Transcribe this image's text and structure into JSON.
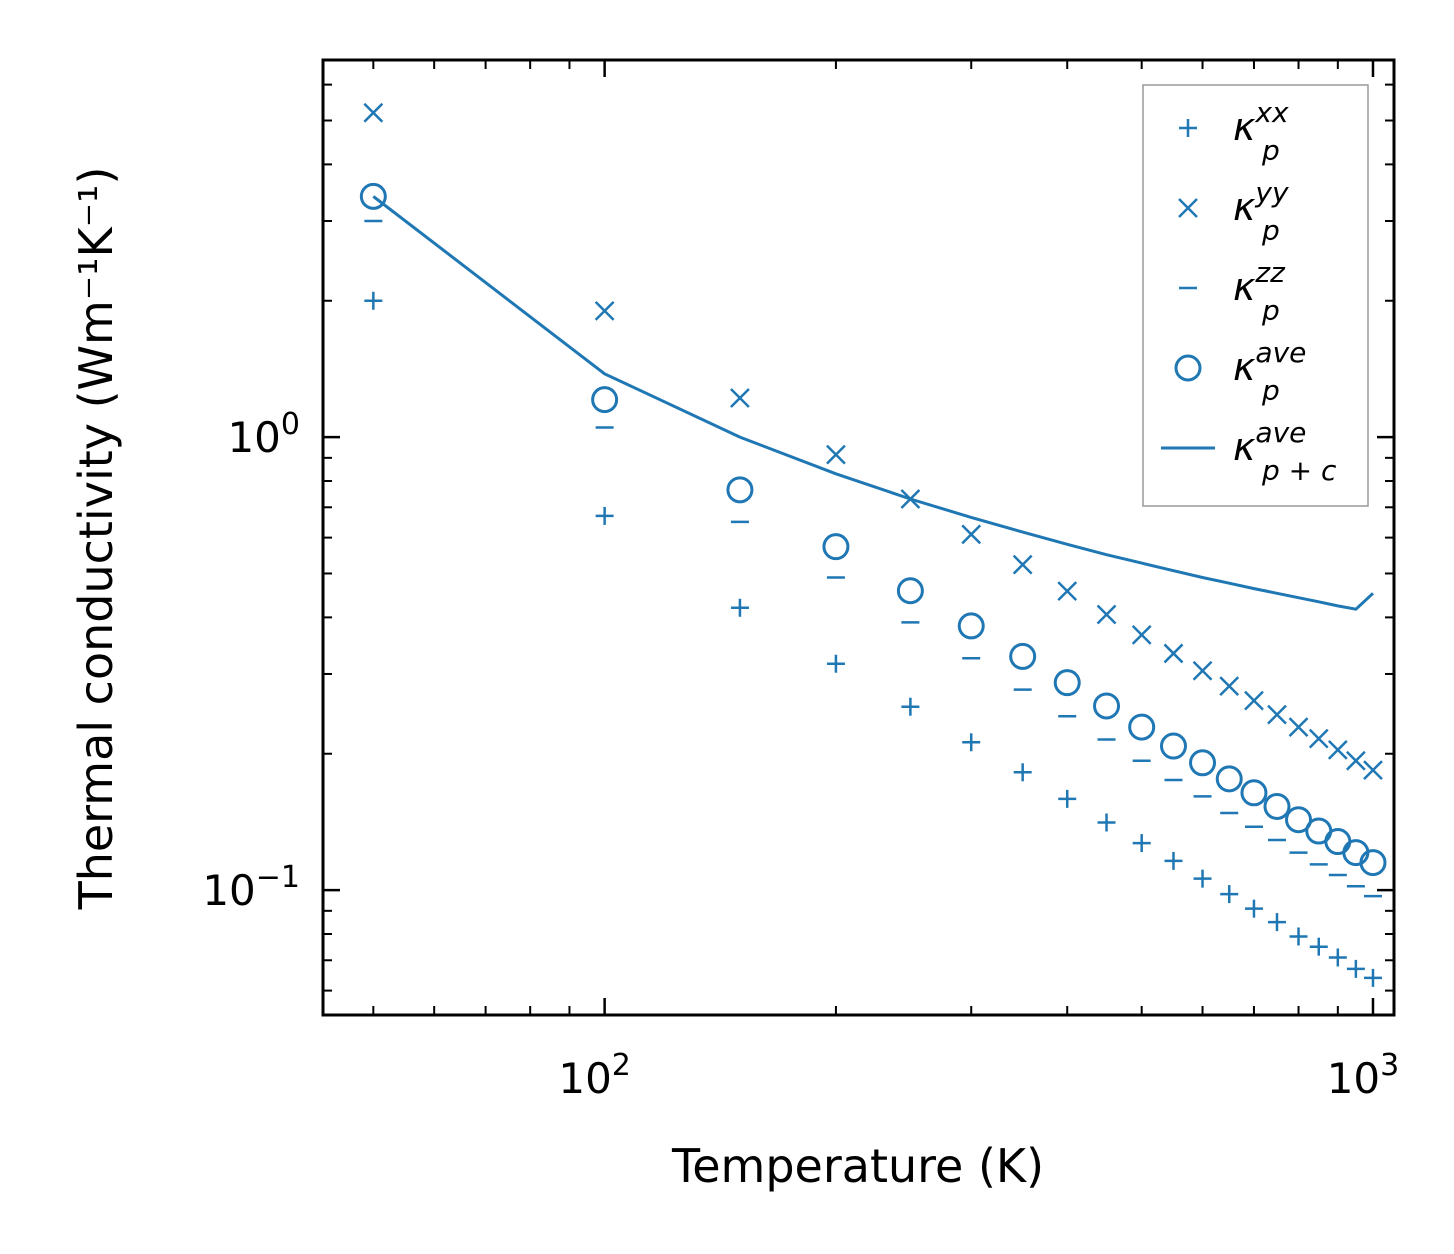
{
  "chart_data": {
    "type": "scatter",
    "title": "",
    "xlabel": "Temperature (K)",
    "ylabel": "Thermal conductivity (Wm⁻¹K⁻¹)",
    "xscale": "log",
    "yscale": "log",
    "xlim": [
      43,
      1065
    ],
    "ylim": [
      0.053,
      6.8
    ],
    "grid": false,
    "legend_position": "top-right",
    "color": "#1f77b4",
    "x_ticks": [
      {
        "value": 100,
        "base": "10",
        "exp": "2"
      },
      {
        "value": 1000,
        "base": "10",
        "exp": "3"
      }
    ],
    "y_ticks": [
      {
        "value": 0.1,
        "base": "10",
        "exp": "−1"
      },
      {
        "value": 1,
        "base": "10",
        "exp": "0"
      }
    ],
    "x": [
      50,
      100,
      150,
      200,
      250,
      300,
      350,
      400,
      450,
      500,
      550,
      600,
      650,
      700,
      750,
      800,
      850,
      900,
      950,
      1000
    ],
    "series": [
      {
        "name": "kappa_p^xx",
        "label_main": "κ",
        "label_sub": "p",
        "label_sup": "xx",
        "marker": "plus",
        "values": [
          2.0,
          0.67,
          0.42,
          0.316,
          0.254,
          0.212,
          0.182,
          0.159,
          0.141,
          0.127,
          0.116,
          0.106,
          0.098,
          0.091,
          0.085,
          0.079,
          0.075,
          0.071,
          0.067,
          0.064
        ]
      },
      {
        "name": "kappa_p^yy",
        "label_main": "κ",
        "label_sub": "p",
        "label_sup": "yy",
        "marker": "x",
        "values": [
          5.2,
          1.9,
          1.22,
          0.915,
          0.73,
          0.61,
          0.523,
          0.457,
          0.406,
          0.366,
          0.333,
          0.305,
          0.282,
          0.262,
          0.244,
          0.229,
          0.216,
          0.204,
          0.193,
          0.184
        ]
      },
      {
        "name": "kappa_p^zz",
        "label_main": "κ",
        "label_sub": "p",
        "label_sup": "zz",
        "marker": "hline",
        "values": [
          3.0,
          1.05,
          0.65,
          0.49,
          0.39,
          0.325,
          0.277,
          0.242,
          0.215,
          0.193,
          0.175,
          0.161,
          0.148,
          0.138,
          0.129,
          0.121,
          0.114,
          0.108,
          0.102,
          0.097
        ]
      },
      {
        "name": "kappa_p^ave",
        "label_main": "κ",
        "label_sub": "p",
        "label_sup": "ave",
        "marker": "circle",
        "values": [
          3.4,
          1.21,
          0.765,
          0.573,
          0.458,
          0.383,
          0.328,
          0.287,
          0.255,
          0.229,
          0.208,
          0.191,
          0.176,
          0.164,
          0.153,
          0.143,
          0.135,
          0.128,
          0.121,
          0.115
        ]
      },
      {
        "name": "kappa_p+c^ave",
        "label_main": "κ",
        "label_sub": "p + c",
        "label_sup": "ave",
        "marker": "line",
        "x": [
          50,
          100,
          150,
          200,
          250,
          300,
          350,
          400,
          450,
          500,
          550,
          600,
          650,
          700,
          750,
          800,
          850,
          900,
          950,
          1000
        ],
        "values": [
          3.4,
          1.38,
          1.0,
          0.83,
          0.73,
          0.665,
          0.617,
          0.58,
          0.55,
          0.527,
          0.507,
          0.49,
          0.476,
          0.463,
          0.452,
          0.442,
          0.433,
          0.424,
          0.417,
          0.452
        ]
      }
    ]
  }
}
